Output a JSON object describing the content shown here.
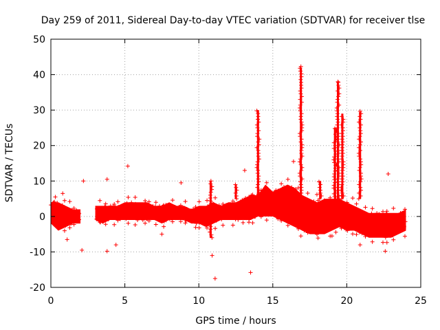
{
  "chart_data": {
    "type": "scatter",
    "title": "Day 259 of 2011, Sidereal Day-to-day VTEC variation (SDTVAR) for receiver tlse",
    "xlabel": "GPS time / hours",
    "ylabel": "SDTVAR / TECUs",
    "xlim": [
      0,
      25
    ],
    "ylim": [
      -20,
      50
    ],
    "xticks": [
      0,
      5,
      10,
      15,
      20,
      25
    ],
    "yticks": [
      -20,
      -10,
      0,
      10,
      20,
      30,
      40,
      50
    ],
    "grid": true,
    "marker": "+",
    "color": "#ff0000",
    "series": [
      {
        "name": "SDTVAR",
        "band": {
          "x": [
            0.0,
            0.5,
            1.0,
            1.5,
            2.0,
            2.25,
            3.0,
            3.5,
            4.0,
            4.5,
            5.0,
            5.5,
            6.0,
            6.5,
            7.0,
            7.5,
            8.0,
            8.5,
            9.0,
            9.5,
            10.0,
            10.5,
            11.0,
            11.5,
            12.0,
            12.5,
            13.0,
            13.5,
            14.0,
            14.5,
            15.0,
            15.5,
            16.0,
            16.5,
            17.0,
            17.5,
            18.0,
            18.5,
            19.0,
            19.5,
            20.0,
            20.5,
            21.0,
            21.5,
            22.0,
            22.5,
            23.0,
            23.5,
            24.0
          ],
          "low": [
            -2,
            -4,
            -3,
            -2,
            -2,
            null,
            -1,
            -2,
            -1,
            -1,
            -1,
            -1,
            -1,
            -1,
            -1,
            -2,
            -1,
            -1,
            -1,
            -2,
            -2,
            -3,
            -2,
            -1,
            -1,
            -1,
            -1,
            -1,
            0,
            0,
            0,
            -1,
            -2,
            -3,
            -4,
            -5,
            -5,
            -5,
            -4,
            -3,
            -4,
            -4,
            -5,
            -6,
            -6,
            -6,
            -6,
            -5,
            -4
          ],
          "high": [
            4,
            4,
            3,
            2,
            2,
            null,
            3,
            3,
            3,
            3,
            4,
            4,
            4,
            4,
            3,
            3,
            4,
            3,
            3,
            2,
            3,
            3,
            4,
            3,
            4,
            4,
            5,
            6,
            6,
            9,
            7,
            8,
            9,
            8,
            6,
            5,
            4,
            5,
            5,
            5,
            4,
            3,
            2,
            1,
            1,
            1,
            1,
            1,
            2
          ]
        },
        "spikes": [
          {
            "x": 14.0,
            "low": 5,
            "high": 30
          },
          {
            "x": 16.9,
            "low": 5,
            "high": 42
          },
          {
            "x": 19.4,
            "low": 5,
            "high": 38
          },
          {
            "x": 19.7,
            "low": 5,
            "high": 29
          },
          {
            "x": 20.9,
            "low": 5,
            "high": 29.5
          },
          {
            "x": 19.2,
            "low": 4,
            "high": 25
          },
          {
            "x": 12.5,
            "low": 5,
            "high": 9
          },
          {
            "x": 18.2,
            "low": 5,
            "high": 10
          },
          {
            "x": 10.8,
            "low": -6,
            "high": 10
          }
        ],
        "outliers": [
          {
            "x": 0.3,
            "y": 5.5
          },
          {
            "x": 0.8,
            "y": 6.5
          },
          {
            "x": 1.1,
            "y": -6.5
          },
          {
            "x": 2.1,
            "y": -9.5
          },
          {
            "x": 2.2,
            "y": 10
          },
          {
            "x": 3.8,
            "y": 10.5
          },
          {
            "x": 3.8,
            "y": -9.8
          },
          {
            "x": 4.4,
            "y": -8
          },
          {
            "x": 5.2,
            "y": 14.2
          },
          {
            "x": 8.8,
            "y": 9.5
          },
          {
            "x": 10.9,
            "y": -11
          },
          {
            "x": 11.1,
            "y": -17.5
          },
          {
            "x": 13.5,
            "y": -15.8
          },
          {
            "x": 13.1,
            "y": 13
          },
          {
            "x": 16.4,
            "y": 15.5
          },
          {
            "x": 16.9,
            "y": 42.3
          },
          {
            "x": 19.4,
            "y": 38
          },
          {
            "x": 20.9,
            "y": 29.7
          },
          {
            "x": 20.9,
            "y": -8
          },
          {
            "x": 22.6,
            "y": -9.8
          },
          {
            "x": 22.8,
            "y": 12
          },
          {
            "x": 7.5,
            "y": -5
          },
          {
            "x": 16.9,
            "y": -5.5
          },
          {
            "x": 19.0,
            "y": -5.5
          }
        ]
      }
    ]
  }
}
